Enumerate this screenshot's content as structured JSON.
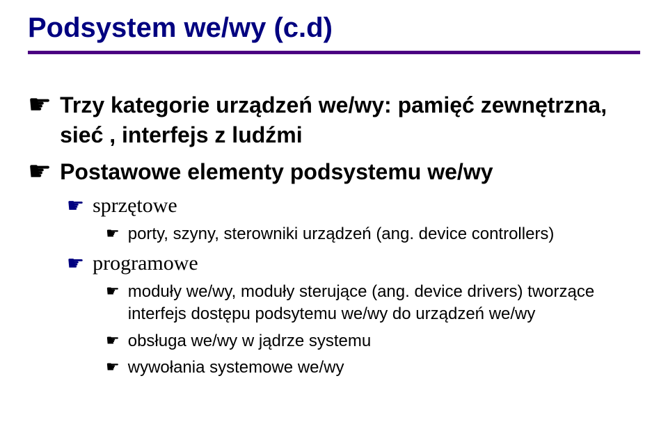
{
  "title": "Podsystem we/wy (c.d)",
  "colors": {
    "title": "#000080",
    "underline": "#4b0082",
    "bullet_lvl1": "#000000",
    "bullet_lvl2": "#000080",
    "bullet_lvl3": "#000000",
    "text": "#000000",
    "background": "#ffffff"
  },
  "typography": {
    "title_fontsize": 40,
    "lvl1_fontsize": 32,
    "lvl2_fontsize": 30,
    "lvl3_fontsize": 24,
    "title_weight": 900,
    "lvl1_weight": 700,
    "lvl2_family": "serif"
  },
  "bullets": [
    {
      "level": 1,
      "text": "Trzy kategorie urządzeń we/wy: pamięć zewnętrzna, sieć , interfejs z ludźmi"
    },
    {
      "level": 1,
      "text": "Postawowe elementy podsystemu we/wy"
    },
    {
      "level": 2,
      "text": "sprzętowe"
    },
    {
      "level": 3,
      "text": "porty, szyny, sterowniki urządzeń (ang. device controllers)"
    },
    {
      "level": 2,
      "text": "programowe"
    },
    {
      "level": 3,
      "text": "moduły we/wy, moduły sterujące (ang. device drivers) tworzące interfejs dostępu podsytemu we/wy do urządzeń we/wy"
    },
    {
      "level": 3,
      "text": "obsługa we/wy w jądrze systemu"
    },
    {
      "level": 3,
      "text": "wywołania systemowe we/wy"
    }
  ]
}
